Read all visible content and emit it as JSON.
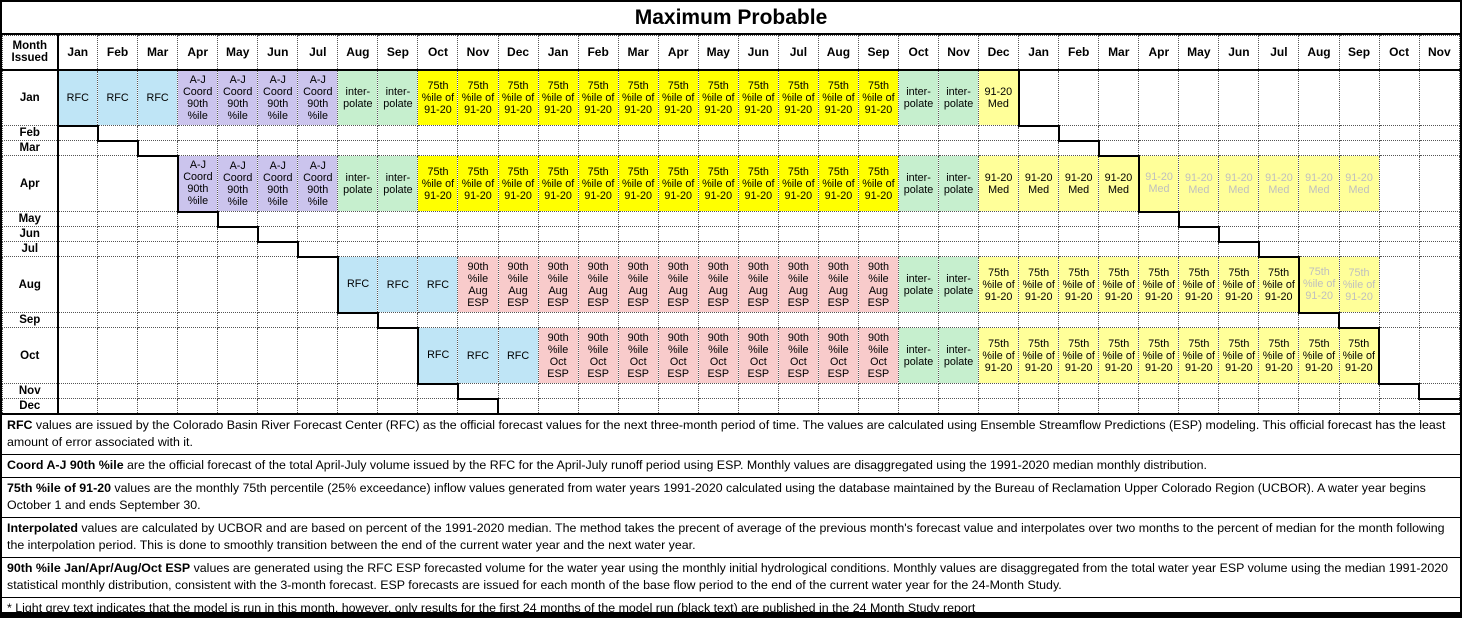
{
  "title": "Maximum Probable",
  "table": {
    "issued_header": "Month Issued",
    "columns": [
      "Jan",
      "Feb",
      "Mar",
      "Apr",
      "May",
      "Jun",
      "Jul",
      "Aug",
      "Sep",
      "Oct",
      "Nov",
      "Dec",
      "Jan",
      "Feb",
      "Mar",
      "Apr",
      "May",
      "Jun",
      "Jul",
      "Aug",
      "Sep",
      "Oct",
      "Nov",
      "Dec",
      "Jan",
      "Feb",
      "Mar",
      "Apr",
      "May",
      "Jun",
      "Jul",
      "Aug",
      "Sep",
      "Oct",
      "Nov"
    ],
    "cell_types": {
      "rfc": {
        "label": "RFC",
        "lines": [
          "RFC"
        ],
        "bg": "#BFE5F6",
        "fg": "#000000"
      },
      "aj_coord": {
        "label": "A-J Coord 90th %ile",
        "lines": [
          "A-J",
          "Coord",
          "90th",
          "%ile"
        ],
        "bg": "#CBC4ED",
        "fg": "#000000"
      },
      "interpolate": {
        "label": "interpolate",
        "lines": [
          "inter-",
          "polate"
        ],
        "bg": "#C6EFCE",
        "fg": "#000000"
      },
      "p75_yellow": {
        "label": "75th %ile of 91-20",
        "lines": [
          "75th",
          "%ile of",
          "91-20"
        ],
        "bg": "#FFFF00",
        "fg": "#000000"
      },
      "p75_pale": {
        "label": "75th %ile of 91-20",
        "lines": [
          "75th",
          "%ile of",
          "91-20"
        ],
        "bg": "#FFFF99",
        "fg": "#000000"
      },
      "p75_pale_grey": {
        "label": "75th %ile of 91-20",
        "lines": [
          "75th",
          "%ile of",
          "91-20"
        ],
        "bg": "#FFFF99",
        "fg": "#BFBFBF"
      },
      "esp_aug": {
        "label": "90th %ile Aug ESP",
        "lines": [
          "90th",
          "%ile",
          "Aug",
          "ESP"
        ],
        "bg": "#F8CBCB",
        "fg": "#000000"
      },
      "esp_oct": {
        "label": "90th %ile Oct ESP",
        "lines": [
          "90th",
          "%ile",
          "Oct",
          "ESP"
        ],
        "bg": "#F8CBCB",
        "fg": "#000000"
      },
      "med": {
        "label": "91-20 Med",
        "lines": [
          "91-20",
          "Med"
        ],
        "bg": "#FFFF99",
        "fg": "#000000"
      },
      "med_grey": {
        "label": "91-20 Med",
        "lines": [
          "91-20",
          "Med"
        ],
        "bg": "#FFFF99",
        "fg": "#BFBFBF"
      }
    },
    "rows": [
      {
        "label": "Jan",
        "tall": true,
        "segments": [
          {
            "from": 1,
            "to": 3,
            "type": "rfc"
          },
          {
            "from": 4,
            "to": 7,
            "type": "aj_coord"
          },
          {
            "from": 8,
            "to": 9,
            "type": "interpolate"
          },
          {
            "from": 10,
            "to": 21,
            "type": "p75_yellow"
          },
          {
            "from": 22,
            "to": 23,
            "type": "interpolate"
          },
          {
            "from": 24,
            "to": 24,
            "type": "med"
          }
        ]
      },
      {
        "label": "Feb",
        "tall": false,
        "segments": []
      },
      {
        "label": "Mar",
        "tall": false,
        "segments": []
      },
      {
        "label": "Apr",
        "tall": true,
        "segments": [
          {
            "from": 4,
            "to": 7,
            "type": "aj_coord"
          },
          {
            "from": 8,
            "to": 9,
            "type": "interpolate"
          },
          {
            "from": 10,
            "to": 21,
            "type": "p75_yellow"
          },
          {
            "from": 22,
            "to": 23,
            "type": "interpolate"
          },
          {
            "from": 24,
            "to": 27,
            "type": "med"
          },
          {
            "from": 28,
            "to": 33,
            "type": "med_grey"
          }
        ]
      },
      {
        "label": "May",
        "tall": false,
        "segments": []
      },
      {
        "label": "Jun",
        "tall": false,
        "segments": []
      },
      {
        "label": "Jul",
        "tall": false,
        "segments": []
      },
      {
        "label": "Aug",
        "tall": true,
        "segments": [
          {
            "from": 8,
            "to": 10,
            "type": "rfc"
          },
          {
            "from": 11,
            "to": 21,
            "type": "esp_aug"
          },
          {
            "from": 22,
            "to": 23,
            "type": "interpolate"
          },
          {
            "from": 24,
            "to": 31,
            "type": "p75_pale"
          },
          {
            "from": 32,
            "to": 33,
            "type": "p75_pale_grey"
          }
        ]
      },
      {
        "label": "Sep",
        "tall": false,
        "segments": []
      },
      {
        "label": "Oct",
        "tall": true,
        "segments": [
          {
            "from": 10,
            "to": 12,
            "type": "rfc"
          },
          {
            "from": 13,
            "to": 21,
            "type": "esp_oct"
          },
          {
            "from": 22,
            "to": 23,
            "type": "interpolate"
          },
          {
            "from": 24,
            "to": 33,
            "type": "p75_pale"
          }
        ]
      },
      {
        "label": "Nov",
        "tall": false,
        "segments": []
      },
      {
        "label": "Dec",
        "tall": false,
        "segments": []
      }
    ]
  },
  "footnotes": [
    {
      "bold": "RFC",
      "rest": " values are issued by the Colorado Basin River Forecast Center (RFC) as the official forecast values for the next three-month period of time.  The values are calculated using Ensemble Streamflow Predictions (ESP) modeling.  This official forecast has the least amount of error associated with it."
    },
    {
      "bold": "Coord A-J 90th %ile",
      "rest": " are the official forecast of the total April-July volume issued by the RFC for the April-July runoff period using ESP.  Monthly values are disaggregated using the 1991-2020 median monthly distribution."
    },
    {
      "bold": "75th %ile of 91-20",
      "rest": " values are the monthly 75th percentile (25% exceedance) inflow values generated from water years 1991-2020 calculated using the database maintained by the Bureau of Reclamation Upper Colorado Region (UCBOR).  A water year begins October 1 and ends September 30."
    },
    {
      "bold": "Interpolated",
      "rest": " values are calculated by UCBOR and are based on percent of the 1991-2020 median.  The method takes the precent of average of the previous month's forecast value and interpolates over two months to the percent of median for the month following the interpolation period.  This is done to smoothly transition between the end of the current water year and the next water year."
    },
    {
      "bold": "90th %ile Jan/Apr/Aug/Oct ESP",
      "rest": " values are generated using the RFC ESP forecasted volume for the water year using the monthly initial hydrological conditions.  Monthly values are disaggregated from the total water year ESP volume using the median 1991-2020 statistical monthly distribution, consistent with the 3-month forecast.  ESP forecasts are issued for each month of the base flow period to the end of the current water year for the 24-Month Study."
    },
    {
      "bold": "",
      "rest": "* Light grey text indicates that the model is run in this month, however, only results for the first 24 months of the model run (black text) are published in the 24 Month Study report"
    }
  ]
}
